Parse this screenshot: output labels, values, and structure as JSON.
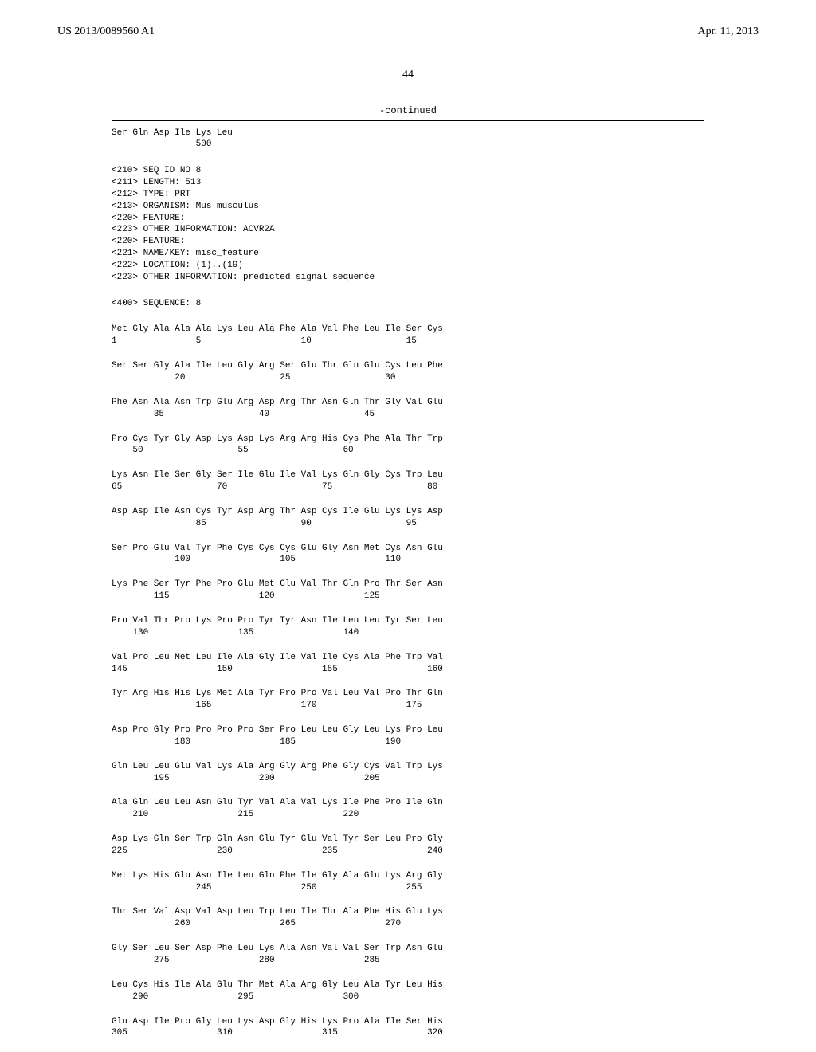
{
  "header": {
    "document_number": "US 2013/0089560 A1",
    "date": "Apr. 11, 2013"
  },
  "page_number": "44",
  "continued_label": "-continued",
  "tail_sequence": "Ser Gln Asp Ile Lys Leu\n                500",
  "metadata": "<210> SEQ ID NO 8\n<211> LENGTH: 513\n<212> TYPE: PRT\n<213> ORGANISM: Mus musculus\n<220> FEATURE:\n<223> OTHER INFORMATION: ACVR2A\n<220> FEATURE:\n<221> NAME/KEY: misc_feature\n<222> LOCATION: (1)..(19)\n<223> OTHER INFORMATION: predicted signal sequence",
  "sequence_header": "<400> SEQUENCE: 8",
  "sequence_rows": [
    "Met Gly Ala Ala Ala Lys Leu Ala Phe Ala Val Phe Leu Ile Ser Cys\n1               5                   10                  15",
    "Ser Ser Gly Ala Ile Leu Gly Arg Ser Glu Thr Gln Glu Cys Leu Phe\n            20                  25                  30",
    "Phe Asn Ala Asn Trp Glu Arg Asp Arg Thr Asn Gln Thr Gly Val Glu\n        35                  40                  45",
    "Pro Cys Tyr Gly Asp Lys Asp Lys Arg Arg His Cys Phe Ala Thr Trp\n    50                  55                  60",
    "Lys Asn Ile Ser Gly Ser Ile Glu Ile Val Lys Gln Gly Cys Trp Leu\n65                  70                  75                  80",
    "Asp Asp Ile Asn Cys Tyr Asp Arg Thr Asp Cys Ile Glu Lys Lys Asp\n                85                  90                  95",
    "Ser Pro Glu Val Tyr Phe Cys Cys Cys Glu Gly Asn Met Cys Asn Glu\n            100                 105                 110",
    "Lys Phe Ser Tyr Phe Pro Glu Met Glu Val Thr Gln Pro Thr Ser Asn\n        115                 120                 125",
    "Pro Val Thr Pro Lys Pro Pro Tyr Tyr Asn Ile Leu Leu Tyr Ser Leu\n    130                 135                 140",
    "Val Pro Leu Met Leu Ile Ala Gly Ile Val Ile Cys Ala Phe Trp Val\n145                 150                 155                 160",
    "Tyr Arg His His Lys Met Ala Tyr Pro Pro Val Leu Val Pro Thr Gln\n                165                 170                 175",
    "Asp Pro Gly Pro Pro Pro Pro Ser Pro Leu Leu Gly Leu Lys Pro Leu\n            180                 185                 190",
    "Gln Leu Leu Glu Val Lys Ala Arg Gly Arg Phe Gly Cys Val Trp Lys\n        195                 200                 205",
    "Ala Gln Leu Leu Asn Glu Tyr Val Ala Val Lys Ile Phe Pro Ile Gln\n    210                 215                 220",
    "Asp Lys Gln Ser Trp Gln Asn Glu Tyr Glu Val Tyr Ser Leu Pro Gly\n225                 230                 235                 240",
    "Met Lys His Glu Asn Ile Leu Gln Phe Ile Gly Ala Glu Lys Arg Gly\n                245                 250                 255",
    "Thr Ser Val Asp Val Asp Leu Trp Leu Ile Thr Ala Phe His Glu Lys\n            260                 265                 270",
    "Gly Ser Leu Ser Asp Phe Leu Lys Ala Asn Val Val Ser Trp Asn Glu\n        275                 280                 285",
    "Leu Cys His Ile Ala Glu Thr Met Ala Arg Gly Leu Ala Tyr Leu His\n    290                 295                 300",
    "Glu Asp Ile Pro Gly Leu Lys Asp Gly His Lys Pro Ala Ile Ser His\n305                 310                 315                 320"
  ]
}
